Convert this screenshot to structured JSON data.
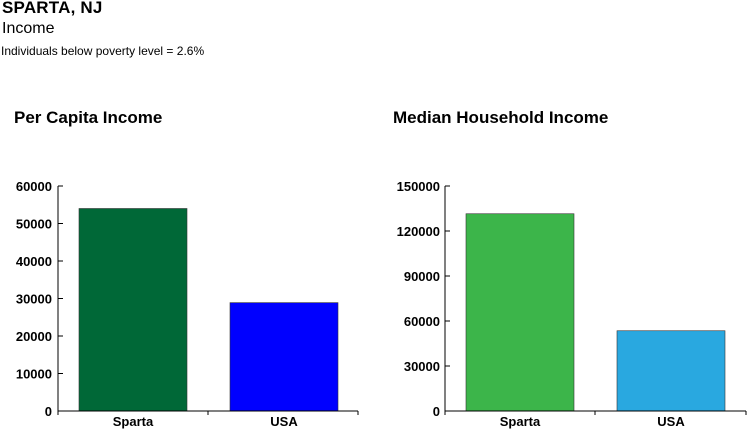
{
  "page": {
    "title": "SPARTA, NJ",
    "subtitle": "Income",
    "note": "Individuals below poverty level = 2.6%"
  },
  "chart_data": [
    {
      "type": "bar",
      "title": "Per Capita Income",
      "categories": [
        "Sparta",
        "USA"
      ],
      "values": [
        54000,
        28900
      ],
      "colors": [
        "#006837",
        "#0000ff"
      ],
      "ylim": [
        0,
        60000
      ],
      "yticks": [
        0,
        10000,
        20000,
        30000,
        40000,
        50000,
        60000
      ],
      "xlabel": "",
      "ylabel": "",
      "grid": false
    },
    {
      "type": "bar",
      "title": "Median Household Income",
      "categories": [
        "Sparta",
        "USA"
      ],
      "values": [
        131500,
        53500
      ],
      "colors": [
        "#3cb54a",
        "#29a8e0"
      ],
      "ylim": [
        0,
        150000
      ],
      "yticks": [
        0,
        30000,
        60000,
        90000,
        120000,
        150000
      ],
      "xlabel": "",
      "ylabel": "",
      "grid": false
    }
  ]
}
